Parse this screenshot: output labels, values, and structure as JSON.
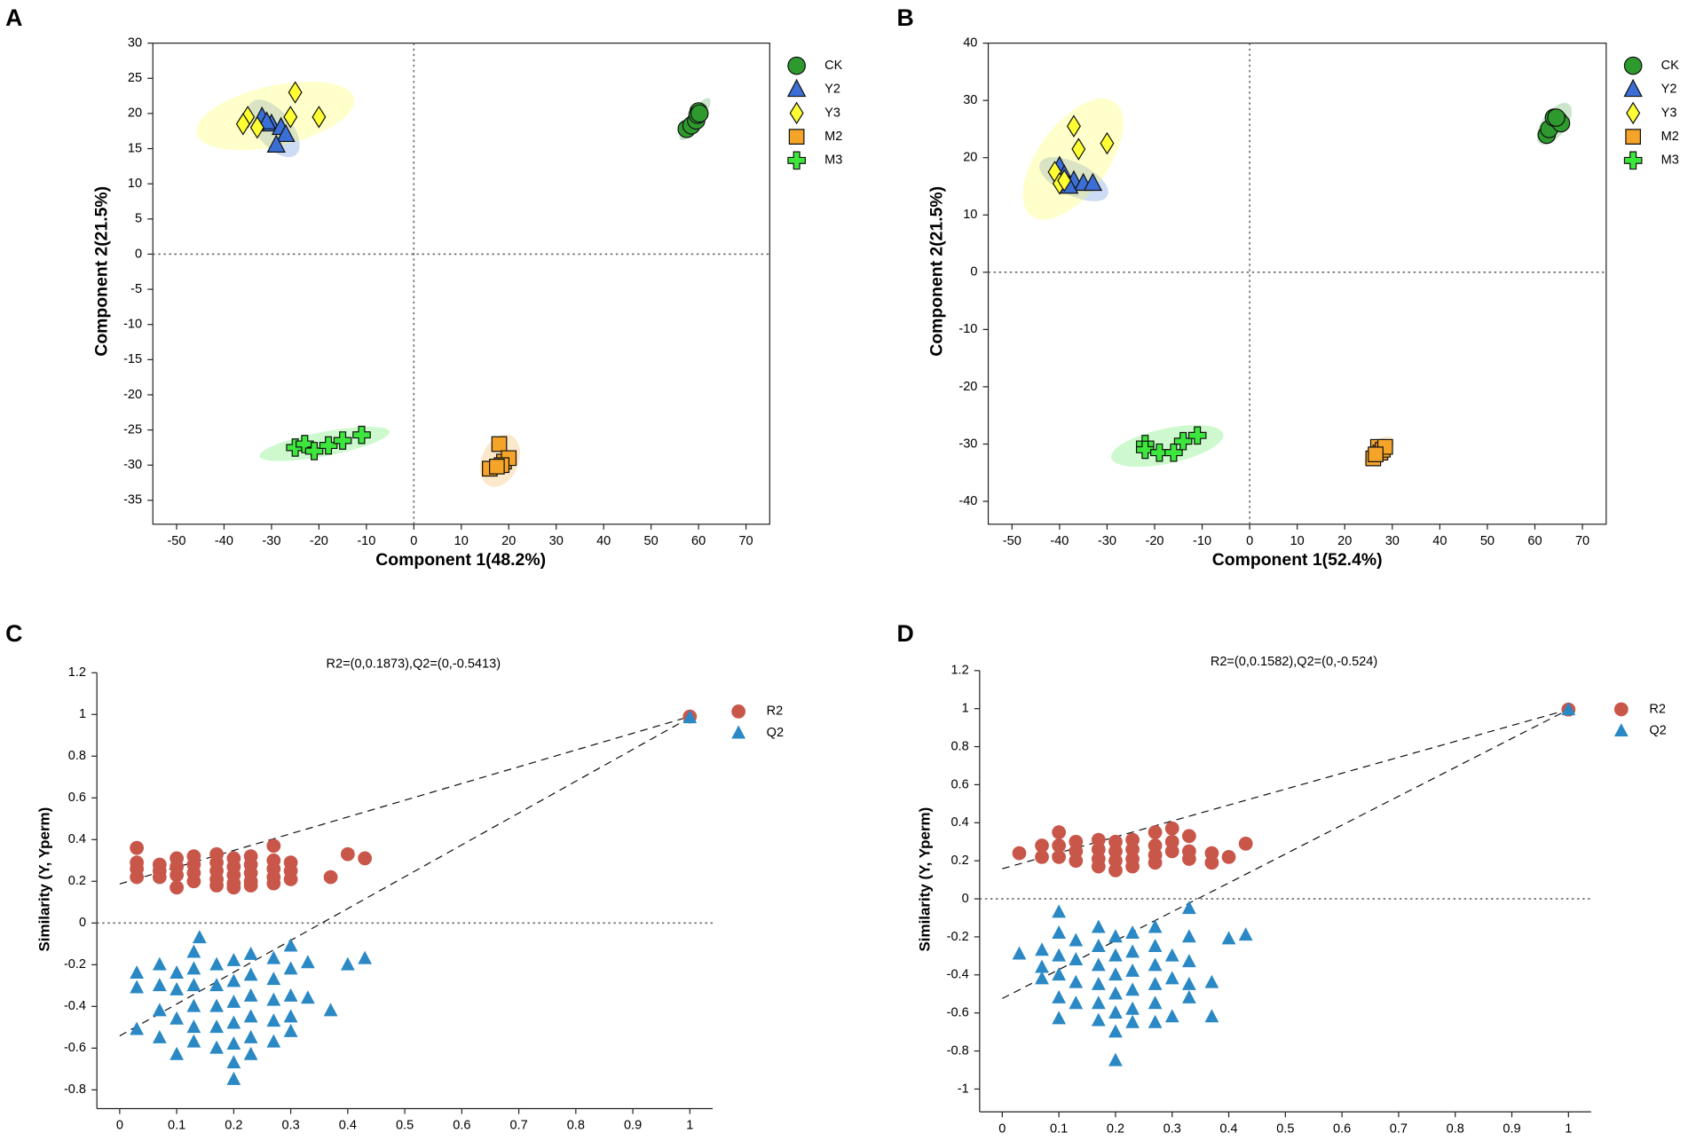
{
  "chart_data": [
    {
      "type": "scatter",
      "panel": "A",
      "xlabel": "Component 1(48.2%)",
      "ylabel": "Component 2(21.5%)",
      "xlim": [
        -55,
        75
      ],
      "ylim": [
        -38.4,
        30
      ],
      "xticks": [
        -50,
        -40,
        -30,
        -20,
        -10,
        0,
        10,
        20,
        30,
        40,
        50,
        60,
        70
      ],
      "yticks": [
        30,
        25,
        20,
        15,
        10,
        5,
        0,
        -5,
        -10,
        -15,
        -20,
        -25,
        -30,
        -35
      ],
      "frame": "box",
      "zero_lines": [
        "x",
        "y"
      ],
      "ellipses": true,
      "series": [
        {
          "name": "CK",
          "color": "#2e9a2e",
          "marker": "circle",
          "x": [
            57.5,
            58.5,
            59.5,
            60,
            59.8,
            60.2
          ],
          "values": [
            17.8,
            18.3,
            19,
            20.3,
            19.8,
            20
          ]
        },
        {
          "name": "Y2",
          "color": "#3b6fd6",
          "marker": "triangle",
          "x": [
            -32,
            -30,
            -28,
            -27,
            -29,
            -31
          ],
          "values": [
            19.5,
            18.5,
            18,
            17,
            15.5,
            18.8
          ]
        },
        {
          "name": "Y3",
          "color": "#ffff33",
          "marker": "diamond",
          "x": [
            -35,
            -33,
            -26,
            -25,
            -20,
            -36
          ],
          "values": [
            19.5,
            18,
            19.5,
            23,
            19.5,
            18.5
          ]
        },
        {
          "name": "M2",
          "color": "#f5a42a",
          "marker": "square",
          "x": [
            16,
            18,
            19,
            20,
            18.5,
            17.5
          ],
          "values": [
            -30.5,
            -27,
            -29.5,
            -29,
            -30,
            -30.2
          ]
        },
        {
          "name": "M3",
          "color": "#3ce63c",
          "marker": "plus",
          "x": [
            -25,
            -23,
            -21,
            -18,
            -15,
            -11
          ],
          "values": [
            -27.5,
            -27,
            -28,
            -27.2,
            -26.5,
            -25.7
          ]
        }
      ]
    },
    {
      "type": "scatter",
      "panel": "B",
      "xlabel": "Component 1(52.4%)",
      "ylabel": "Component 2(21.5%)",
      "xlim": [
        -55,
        75
      ],
      "ylim": [
        -44,
        40
      ],
      "xticks": [
        -50,
        -40,
        -30,
        -20,
        -10,
        0,
        10,
        20,
        30,
        40,
        50,
        60,
        70
      ],
      "yticks": [
        40,
        30,
        20,
        10,
        0,
        -10,
        -20,
        -30,
        -40
      ],
      "frame": "box",
      "zero_lines": [
        "x",
        "y"
      ],
      "ellipses": true,
      "series": [
        {
          "name": "CK",
          "color": "#2e9a2e",
          "marker": "circle",
          "x": [
            62.5,
            63,
            64,
            65,
            65.5,
            64.5
          ],
          "values": [
            24,
            25,
            27,
            26.5,
            26,
            27
          ]
        },
        {
          "name": "Y2",
          "color": "#3b6fd6",
          "marker": "triangle",
          "x": [
            -40,
            -39,
            -37,
            -35,
            -33,
            -38
          ],
          "values": [
            18.5,
            17,
            16,
            15.5,
            15.5,
            15
          ]
        },
        {
          "name": "Y3",
          "color": "#ffff33",
          "marker": "diamond",
          "x": [
            -41,
            -40,
            -39,
            -37,
            -36,
            -30
          ],
          "values": [
            17.5,
            15.5,
            16,
            25.5,
            21.5,
            22.5
          ]
        },
        {
          "name": "M2",
          "color": "#f5a42a",
          "marker": "square",
          "x": [
            26,
            27,
            27.5,
            28,
            28.5,
            26.5
          ],
          "values": [
            -32.5,
            -30.5,
            -31.5,
            -31,
            -30.5,
            -31.8
          ]
        },
        {
          "name": "M3",
          "color": "#3ce63c",
          "marker": "plus",
          "x": [
            -22,
            -22,
            -19,
            -16,
            -14,
            -11
          ],
          "values": [
            -30,
            -31,
            -31.5,
            -31.5,
            -29.5,
            -28.5
          ]
        }
      ]
    },
    {
      "type": "permutation",
      "panel": "C",
      "title": "R2=(0,0.1873),Q2=(0,-0.5413)",
      "ylabel": "Similarity (Y, Yperm)",
      "xlim": [
        -0.04,
        1.04
      ],
      "ylim": [
        -0.89,
        1.2
      ],
      "xticks": [
        0,
        0.1,
        0.2,
        0.3,
        0.4,
        0.5,
        0.6,
        0.7,
        0.8,
        0.9,
        1
      ],
      "yticks": [
        1.2,
        1,
        0.8,
        0.6,
        0.4,
        0.2,
        0,
        -0.2,
        -0.4,
        -0.6,
        -0.8
      ],
      "frame": "axes",
      "zero_lines": [
        "y"
      ],
      "series": [
        {
          "name": "R2",
          "color": "#c8574a",
          "marker": "circle",
          "intercept": 0.1873,
          "x": [
            0.03,
            0.03,
            0.03,
            0.03,
            0.07,
            0.07,
            0.07,
            0.1,
            0.1,
            0.1,
            0.1,
            0.13,
            0.13,
            0.13,
            0.13,
            0.17,
            0.17,
            0.17,
            0.17,
            0.17,
            0.2,
            0.2,
            0.2,
            0.2,
            0.2,
            0.23,
            0.23,
            0.23,
            0.23,
            0.23,
            0.27,
            0.27,
            0.27,
            0.27,
            0.27,
            0.3,
            0.3,
            0.3,
            0.37,
            0.4,
            0.43,
            1
          ],
          "values": [
            0.36,
            0.29,
            0.26,
            0.22,
            0.28,
            0.25,
            0.22,
            0.31,
            0.27,
            0.23,
            0.17,
            0.32,
            0.28,
            0.24,
            0.2,
            0.33,
            0.29,
            0.25,
            0.21,
            0.18,
            0.31,
            0.27,
            0.23,
            0.19,
            0.17,
            0.32,
            0.28,
            0.24,
            0.2,
            0.18,
            0.37,
            0.3,
            0.26,
            0.22,
            0.19,
            0.29,
            0.25,
            0.21,
            0.22,
            0.33,
            0.31,
            0.99
          ]
        },
        {
          "name": "Q2",
          "color": "#2a88c4",
          "marker": "triangle",
          "intercept": -0.5413,
          "x": [
            0.03,
            0.03,
            0.03,
            0.07,
            0.07,
            0.07,
            0.07,
            0.1,
            0.1,
            0.1,
            0.1,
            0.13,
            0.13,
            0.13,
            0.13,
            0.13,
            0.13,
            0.17,
            0.17,
            0.17,
            0.17,
            0.17,
            0.2,
            0.2,
            0.2,
            0.2,
            0.2,
            0.2,
            0.2,
            0.23,
            0.23,
            0.23,
            0.23,
            0.23,
            0.23,
            0.27,
            0.27,
            0.27,
            0.27,
            0.27,
            0.3,
            0.3,
            0.3,
            0.3,
            0.3,
            0.33,
            0.33,
            0.37,
            0.4,
            0.43,
            0.14,
            1
          ],
          "values": [
            -0.24,
            -0.31,
            -0.51,
            -0.2,
            -0.3,
            -0.42,
            -0.55,
            -0.24,
            -0.32,
            -0.46,
            -0.63,
            -0.14,
            -0.22,
            -0.3,
            -0.4,
            -0.5,
            -0.57,
            -0.2,
            -0.3,
            -0.4,
            -0.5,
            -0.6,
            -0.18,
            -0.28,
            -0.38,
            -0.48,
            -0.58,
            -0.67,
            -0.75,
            -0.15,
            -0.25,
            -0.35,
            -0.45,
            -0.55,
            -0.63,
            -0.17,
            -0.27,
            -0.37,
            -0.47,
            -0.57,
            -0.11,
            -0.22,
            -0.35,
            -0.45,
            -0.52,
            -0.19,
            -0.36,
            -0.42,
            -0.2,
            -0.17,
            -0.07,
            0.985
          ]
        }
      ]
    },
    {
      "type": "permutation",
      "panel": "D",
      "title": "R2=(0,0.1582),Q2=(0,-0.524)",
      "ylabel": "Similarity (Y, Yperm)",
      "xlim": [
        -0.04,
        1.04
      ],
      "ylim": [
        -1.12,
        1.2
      ],
      "xticks": [
        0,
        0.1,
        0.2,
        0.3,
        0.4,
        0.5,
        0.6,
        0.7,
        0.8,
        0.9,
        1
      ],
      "yticks": [
        1.2,
        1,
        0.8,
        0.6,
        0.4,
        0.2,
        0,
        -0.2,
        -0.4,
        -0.6,
        -0.8,
        -1
      ],
      "frame": "axes",
      "zero_lines": [
        "y"
      ],
      "series": [
        {
          "name": "R2",
          "color": "#c8574a",
          "marker": "circle",
          "intercept": 0.1582,
          "x": [
            0.03,
            0.07,
            0.07,
            0.1,
            0.1,
            0.1,
            0.13,
            0.13,
            0.13,
            0.17,
            0.17,
            0.17,
            0.17,
            0.2,
            0.2,
            0.2,
            0.2,
            0.23,
            0.23,
            0.23,
            0.23,
            0.27,
            0.27,
            0.27,
            0.27,
            0.3,
            0.3,
            0.3,
            0.33,
            0.33,
            0.33,
            0.37,
            0.37,
            0.4,
            0.43,
            1
          ],
          "values": [
            0.24,
            0.28,
            0.22,
            0.35,
            0.28,
            0.22,
            0.3,
            0.25,
            0.2,
            0.31,
            0.26,
            0.21,
            0.17,
            0.3,
            0.25,
            0.2,
            0.15,
            0.31,
            0.26,
            0.21,
            0.17,
            0.35,
            0.28,
            0.23,
            0.19,
            0.37,
            0.3,
            0.25,
            0.33,
            0.25,
            0.21,
            0.24,
            0.19,
            0.22,
            0.29,
            0.995
          ]
        },
        {
          "name": "Q2",
          "color": "#2a88c4",
          "marker": "triangle",
          "intercept": -0.524,
          "x": [
            0.03,
            0.07,
            0.07,
            0.07,
            0.1,
            0.1,
            0.1,
            0.1,
            0.1,
            0.1,
            0.13,
            0.13,
            0.13,
            0.13,
            0.17,
            0.17,
            0.17,
            0.17,
            0.17,
            0.17,
            0.2,
            0.2,
            0.2,
            0.2,
            0.2,
            0.2,
            0.2,
            0.23,
            0.23,
            0.23,
            0.23,
            0.23,
            0.23,
            0.27,
            0.27,
            0.27,
            0.27,
            0.27,
            0.27,
            0.3,
            0.3,
            0.3,
            0.33,
            0.33,
            0.33,
            0.33,
            0.33,
            0.37,
            0.37,
            0.4,
            0.43,
            1
          ],
          "values": [
            -0.29,
            -0.27,
            -0.36,
            -0.42,
            -0.07,
            -0.18,
            -0.3,
            -0.4,
            -0.52,
            -0.63,
            -0.22,
            -0.32,
            -0.44,
            -0.55,
            -0.15,
            -0.25,
            -0.35,
            -0.45,
            -0.55,
            -0.64,
            -0.2,
            -0.3,
            -0.4,
            -0.5,
            -0.6,
            -0.7,
            -0.85,
            -0.18,
            -0.28,
            -0.38,
            -0.48,
            -0.58,
            -0.65,
            -0.15,
            -0.25,
            -0.35,
            -0.45,
            -0.55,
            -0.65,
            -0.3,
            -0.42,
            -0.62,
            -0.05,
            -0.2,
            -0.33,
            -0.45,
            -0.52,
            -0.44,
            -0.62,
            -0.21,
            -0.19,
            0.995
          ]
        }
      ]
    }
  ]
}
